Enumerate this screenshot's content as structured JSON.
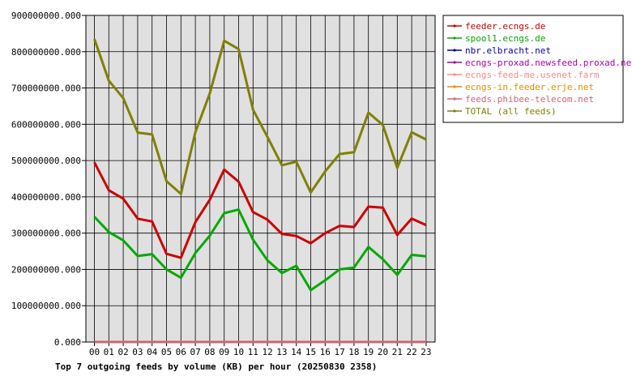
{
  "chart_data": {
    "type": "line",
    "title": "Top 7 outgoing feeds by volume (KB) per hour (20250830 2358)",
    "xlabel": "",
    "ylabel": "",
    "categories": [
      "00",
      "01",
      "02",
      "03",
      "04",
      "05",
      "06",
      "07",
      "08",
      "09",
      "10",
      "11",
      "12",
      "13",
      "14",
      "15",
      "16",
      "17",
      "18",
      "19",
      "20",
      "21",
      "22",
      "23"
    ],
    "ylim": [
      0,
      900000000
    ],
    "yticks": [
      "0.000",
      "100000000.000",
      "200000000.000",
      "300000000.000",
      "400000000.000",
      "500000000.000",
      "600000000.000",
      "700000000.000",
      "800000000.000",
      "900000000.000"
    ],
    "grid": true,
    "legend_position": "right",
    "series": [
      {
        "name": "feeder.ecngs.de",
        "color": "#cc0000",
        "values": [
          495000000,
          418000000,
          395000000,
          340000000,
          332000000,
          243000000,
          232000000,
          330000000,
          392000000,
          475000000,
          442000000,
          358000000,
          337000000,
          298000000,
          292000000,
          272000000,
          300000000,
          320000000,
          317000000,
          373000000,
          370000000,
          295000000,
          340000000,
          322000000
        ]
      },
      {
        "name": "spool1.ecngs.de",
        "color": "#00aa00",
        "values": [
          345000000,
          303000000,
          280000000,
          237000000,
          242000000,
          200000000,
          177000000,
          245000000,
          293000000,
          355000000,
          365000000,
          282000000,
          225000000,
          190000000,
          210000000,
          143000000,
          170000000,
          200000000,
          205000000,
          262000000,
          228000000,
          185000000,
          240000000,
          236000000
        ]
      },
      {
        "name": "nbr.elbracht.net",
        "color": "#0000aa",
        "values": [
          0,
          0,
          0,
          0,
          0,
          0,
          0,
          0,
          0,
          0,
          0,
          0,
          0,
          0,
          0,
          0,
          0,
          0,
          0,
          0,
          0,
          0,
          0,
          0
        ]
      },
      {
        "name": "ecngs-proxad.newsfeed.proxad.net",
        "color": "#aa00aa",
        "values": [
          0,
          0,
          0,
          0,
          0,
          0,
          0,
          0,
          0,
          0,
          0,
          0,
          0,
          0,
          0,
          0,
          0,
          0,
          0,
          0,
          0,
          0,
          0,
          0
        ]
      },
      {
        "name": "ecngs-feed-me.usenet.farm",
        "color": "#ff8888",
        "values": [
          0,
          0,
          0,
          0,
          0,
          0,
          0,
          0,
          0,
          0,
          0,
          0,
          0,
          0,
          0,
          0,
          0,
          0,
          0,
          0,
          0,
          0,
          0,
          0
        ]
      },
      {
        "name": "ecngs-in.feeder.erje.net",
        "color": "#ee8800",
        "values": [
          0,
          0,
          0,
          0,
          0,
          0,
          0,
          0,
          0,
          0,
          0,
          0,
          0,
          0,
          0,
          0,
          0,
          0,
          0,
          0,
          0,
          0,
          0,
          0
        ]
      },
      {
        "name": "feeds.phibee-telecom.net",
        "color": "#cc6677",
        "values": [
          0,
          0,
          0,
          0,
          0,
          0,
          0,
          0,
          0,
          0,
          0,
          0,
          0,
          0,
          0,
          0,
          0,
          0,
          0,
          0,
          0,
          0,
          0,
          0
        ]
      },
      {
        "name": "TOTAL (all feeds)",
        "color": "#808000",
        "values": [
          835000000,
          720000000,
          672000000,
          577000000,
          572000000,
          443000000,
          408000000,
          578000000,
          685000000,
          830000000,
          807000000,
          640000000,
          565000000,
          487000000,
          497000000,
          412000000,
          470000000,
          518000000,
          523000000,
          632000000,
          598000000,
          480000000,
          578000000,
          558000000
        ]
      }
    ]
  }
}
